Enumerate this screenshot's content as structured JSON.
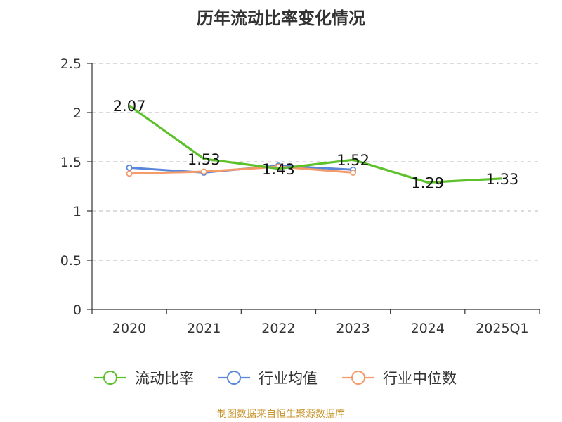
{
  "chart_data": {
    "type": "line",
    "title": "历年流动比率变化情况",
    "categories": [
      "2020",
      "2021",
      "2022",
      "2023",
      "2024",
      "2025Q1"
    ],
    "ylim": [
      0,
      2.5
    ],
    "y_ticks": [
      "0",
      "0.5",
      "1",
      "1.5",
      "2",
      "2.5"
    ],
    "grid": "horizontal dashed",
    "legend_position": "bottom",
    "series": [
      {
        "name": "流动比率",
        "color": "#5cc12b",
        "values": [
          2.07,
          1.53,
          1.43,
          1.52,
          1.29,
          1.33
        ],
        "labels": [
          "2.07",
          "1.53",
          "1.43",
          "1.52",
          "1.29",
          "1.33"
        ]
      },
      {
        "name": "行业均值",
        "color": "#5b87d8",
        "values": [
          1.44,
          1.39,
          1.46,
          1.42,
          null,
          null
        ]
      },
      {
        "name": "行业中位数",
        "color": "#f59b6a",
        "values": [
          1.38,
          1.4,
          1.45,
          1.39,
          null,
          null
        ]
      }
    ]
  },
  "footer": {
    "source": "制图数据来自恒生聚源数据库"
  }
}
